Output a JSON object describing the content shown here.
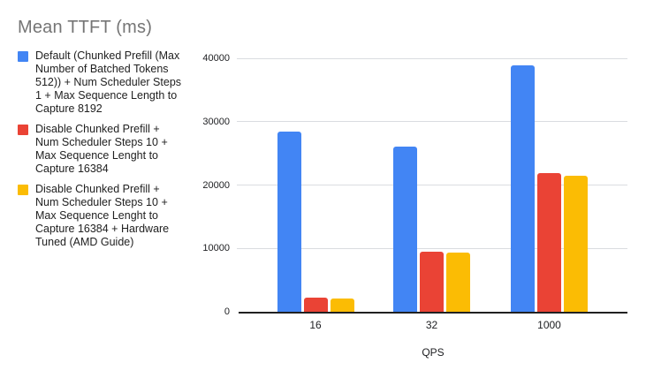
{
  "title": "Mean TTFT (ms)",
  "colors": {
    "series_blue": "#4285F4",
    "series_red": "#EA4335",
    "series_yellow": "#FBBC04",
    "title_text": "#757575",
    "axis_text": "#202124",
    "gridline": "#dadce0",
    "baseline": "#212121"
  },
  "legend": {
    "items": [
      {
        "color": "#4285F4",
        "label": "Default (Chunked Prefill (Max\nNumber of Batched Tokens\n512)) + Num Scheduler Steps\n1 + Max Sequence Length to\nCapture 8192"
      },
      {
        "color": "#EA4335",
        "label": "Disable Chunked Prefill +\nNum Scheduler Steps 10 +\nMax Sequence Lenght to\nCapture 16384"
      },
      {
        "color": "#FBBC04",
        "label": "Disable Chunked Prefill +\nNum Scheduler Steps 10 +\nMax Sequence Lenght to\nCapture 16384 + Hardware\nTuned (AMD Guide)"
      }
    ]
  },
  "chart_data": {
    "type": "bar",
    "title": "Mean TTFT (ms)",
    "categories": [
      "16",
      "32",
      "1000"
    ],
    "series": [
      {
        "name": "Default (Chunked Prefill (Max Number of Batched Tokens 512)) + Num Scheduler Steps 1 + Max Sequence Length to Capture 8192",
        "color": "#4285F4",
        "values": [
          28400,
          26000,
          38900
        ]
      },
      {
        "name": "Disable Chunked Prefill + Num Scheduler Steps 10 + Max Sequence Lenght to Capture 16384",
        "color": "#EA4335",
        "values": [
          2200,
          9500,
          21900
        ]
      },
      {
        "name": "Disable Chunked Prefill + Num Scheduler Steps 10 + Max Sequence Lenght to Capture 16384 + Hardware Tuned (AMD Guide)",
        "color": "#FBBC04",
        "values": [
          2050,
          9300,
          21500
        ]
      }
    ],
    "xlabel": "QPS",
    "ylabel": "",
    "ylim": [
      0,
      40000
    ],
    "yticks": [
      0,
      10000,
      20000,
      30000,
      40000
    ],
    "grid": true,
    "legend_position": "left"
  }
}
